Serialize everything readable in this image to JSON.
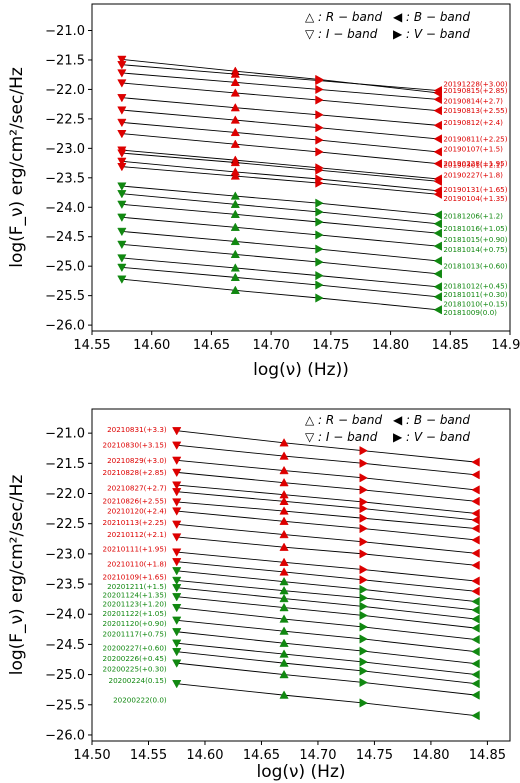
{
  "colors": {
    "red": "#dd0000",
    "green": "#118811",
    "line": "#000000"
  },
  "chart_data": [
    {
      "type": "line",
      "xlabel": "log(ν) (Hz))",
      "ylabel": "log(F_ν) erg/cm²/sec/Hz",
      "xlim": [
        14.55,
        14.9
      ],
      "ylim": [
        -26.1,
        -20.55
      ],
      "xticks": [
        "14.55",
        "14.60",
        "14.65",
        "14.70",
        "14.75",
        "14.80",
        "14.85",
        "14.90"
      ],
      "yticks": [
        "−21.0",
        "−21.5",
        "−22.0",
        "−22.5",
        "−23.0",
        "−23.5",
        "−24.0",
        "−24.5",
        "−25.0",
        "−25.5",
        "−26.0"
      ],
      "legend": {
        "position": "top-right",
        "entries": [
          "△ : R − band",
          "◀ : B − band",
          "▽ : I − band",
          "▶ : V − band"
        ]
      },
      "band_x": [
        14.575,
        14.67,
        14.74,
        14.84
      ],
      "band_markers": [
        "I",
        "R",
        "V",
        "B"
      ],
      "series": [
        {
          "name": "20191228(+3.00)",
          "color": "red",
          "values": [
            -21.49,
            -21.69,
            -21.83,
            -22.06
          ],
          "label_y": -21.91
        },
        {
          "name": "20190815(+2.85)",
          "color": "red",
          "values": [
            -21.58,
            -21.74,
            -21.85,
            -22.02
          ],
          "label_y": -22.02
        },
        {
          "name": "20190814(+2.7)",
          "color": "red",
          "values": [
            -21.72,
            -21.88,
            -22.0,
            -22.17
          ],
          "label_y": -22.2
        },
        {
          "name": "20190813(+2.55)",
          "color": "red",
          "values": [
            -21.89,
            -22.06,
            -22.18,
            -22.36
          ],
          "label_y": -22.36
        },
        {
          "name": "20190812(+2.4)",
          "color": "red",
          "values": [
            -22.14,
            -22.31,
            -22.43,
            -22.61
          ],
          "label_y": -22.56
        },
        {
          "name": "20190811(+2.25)",
          "color": "red",
          "values": [
            -22.35,
            -22.52,
            -22.65,
            -22.84
          ],
          "label_y": -22.84
        },
        {
          "name": "20190107(+1.5)",
          "color": "red",
          "values": [
            -22.56,
            -22.73,
            -22.86,
            -23.06
          ],
          "label_y": -23.01
        },
        {
          "name": "20190301(+2.1)",
          "color": "red",
          "values": [
            -22.75,
            -22.93,
            -23.06,
            -23.26
          ],
          "label_y": -23.28
        },
        {
          "name": "20190228(+1.95)",
          "color": "red",
          "values": [
            -23.03,
            -23.2,
            -23.33,
            -23.52
          ],
          "label_y": -23.26
        },
        {
          "name": "20190227(+1.8)",
          "color": "red",
          "values": [
            -23.08,
            -23.24,
            -23.37,
            -23.56
          ],
          "label_y": -23.45
        },
        {
          "name": "20190131(+1.65)",
          "color": "red",
          "values": [
            -23.22,
            -23.4,
            -23.52,
            -23.72
          ],
          "label_y": -23.7
        },
        {
          "name": "20190104(+1.35)",
          "color": "red",
          "values": [
            -23.31,
            -23.47,
            -23.59,
            -23.78
          ],
          "label_y": -23.85
        },
        {
          "name": "20181206(+1.2)",
          "color": "green",
          "values": [
            -23.64,
            -23.81,
            -23.93,
            -24.13
          ],
          "label_y": -24.15
        },
        {
          "name": "20181016(+1.05)",
          "color": "green",
          "values": [
            -23.77,
            -23.95,
            -24.08,
            -24.28
          ],
          "label_y": -24.36
        },
        {
          "name": "20181015(+0.90)",
          "color": "green",
          "values": [
            -23.95,
            -24.12,
            -24.25,
            -24.44
          ],
          "label_y": -24.55
        },
        {
          "name": "20181014(+0.75)",
          "color": "green",
          "values": [
            -24.17,
            -24.34,
            -24.47,
            -24.66
          ],
          "label_y": -24.72
        },
        {
          "name": "20181013(+0.60)",
          "color": "green",
          "values": [
            -24.41,
            -24.58,
            -24.71,
            -24.91
          ],
          "label_y": -25.0
        },
        {
          "name": "20181012(+0.45)",
          "color": "green",
          "values": [
            -24.63,
            -24.8,
            -24.93,
            -25.13
          ],
          "label_y": -25.34
        },
        {
          "name": "20181011(+0.30)",
          "color": "green",
          "values": [
            -24.86,
            -25.03,
            -25.16,
            -25.35
          ],
          "label_y": -25.48
        },
        {
          "name": "20181010(+0.15)",
          "color": "green",
          "values": [
            -25.02,
            -25.19,
            -25.32,
            -25.52
          ],
          "label_y": -25.64
        },
        {
          "name": "20181009(0.0)",
          "color": "green",
          "values": [
            -25.22,
            -25.41,
            -25.54,
            -25.74
          ],
          "label_y": -25.79
        }
      ]
    },
    {
      "type": "line",
      "xlabel": "log(ν) (Hz)",
      "ylabel": "log(F_ν) erg/cm²/sec/Hz",
      "xlim": [
        14.5,
        14.87
      ],
      "ylim": [
        -26.1,
        -20.6
      ],
      "xticks": [
        "14.50",
        "14.55",
        "14.60",
        "14.65",
        "14.70",
        "14.75",
        "14.80",
        "14.85"
      ],
      "yticks": [
        "−21.0",
        "−21.5",
        "−22.0",
        "−22.5",
        "−23.0",
        "−23.5",
        "−24.0",
        "−24.5",
        "−25.0",
        "−25.5",
        "−26.0"
      ],
      "legend": {
        "position": "top-right",
        "entries": [
          "△ : R − band",
          "◀ : B − band",
          "▽ : I − band",
          "▶ : V − band"
        ]
      },
      "band_x": [
        14.575,
        14.67,
        14.74,
        14.84
      ],
      "band_markers": [
        "I",
        "R",
        "V",
        "B"
      ],
      "series": [
        {
          "name": "20210831(+3.3)",
          "color": "red",
          "values": [
            -20.96,
            -21.16,
            -21.29,
            -21.48
          ],
          "label_y": -20.94
        },
        {
          "name": "20210830(+3.15)",
          "color": "red",
          "values": [
            -21.2,
            -21.38,
            -21.5,
            -21.69
          ],
          "label_y": -21.2
        },
        {
          "name": "20210829(+3.0)",
          "color": "red",
          "values": [
            -21.45,
            -21.62,
            -21.74,
            -21.94
          ],
          "label_y": -21.45
        },
        {
          "name": "20210828(+2.85)",
          "color": "red",
          "values": [
            -21.65,
            -21.82,
            -21.94,
            -22.13
          ],
          "label_y": -21.65
        },
        {
          "name": "20210827(+2.7)",
          "color": "red",
          "values": [
            -21.86,
            -22.02,
            -22.14,
            -22.33
          ],
          "label_y": -21.91
        },
        {
          "name": "20210826(+2.55)",
          "color": "red",
          "values": [
            -21.97,
            -22.13,
            -22.25,
            -22.44
          ],
          "label_y": -22.12
        },
        {
          "name": "20210120(+2.4)",
          "color": "red",
          "values": [
            -22.14,
            -22.29,
            -22.41,
            -22.58
          ],
          "label_y": -22.29
        },
        {
          "name": "20210113(+2.25)",
          "color": "red",
          "values": [
            -22.29,
            -22.46,
            -22.58,
            -22.77
          ],
          "label_y": -22.48
        },
        {
          "name": "20210112(+2.1)",
          "color": "red",
          "values": [
            -22.51,
            -22.68,
            -22.8,
            -22.99
          ],
          "label_y": -22.68
        },
        {
          "name": "20210111(+1.95)",
          "color": "red",
          "values": [
            -22.72,
            -22.89,
            -23.0,
            -23.19
          ],
          "label_y": -22.92
        },
        {
          "name": "20210110(+1.8)",
          "color": "red",
          "values": [
            -22.97,
            -23.14,
            -23.26,
            -23.45
          ],
          "label_y": -23.17
        },
        {
          "name": "20210109(+1.65)",
          "color": "red",
          "values": [
            -23.13,
            -23.3,
            -23.43,
            -23.62
          ],
          "label_y": -23.38
        },
        {
          "name": "20201211(+1.5)",
          "color": "green",
          "values": [
            -23.28,
            -23.46,
            -23.59,
            -23.79
          ],
          "label_y": -23.54
        },
        {
          "name": "20201124(+1.35)",
          "color": "green",
          "values": [
            -23.44,
            -23.61,
            -23.73,
            -23.93
          ],
          "label_y": -23.68
        },
        {
          "name": "20201123(+1.20)",
          "color": "green",
          "values": [
            -23.56,
            -23.74,
            -23.87,
            -24.08
          ],
          "label_y": -23.83
        },
        {
          "name": "20201122(+1.05)",
          "color": "green",
          "values": [
            -23.71,
            -23.89,
            -24.02,
            -24.23
          ],
          "label_y": -23.99
        },
        {
          "name": "20201120(+0.90)",
          "color": "green",
          "values": [
            -23.89,
            -24.08,
            -24.21,
            -24.42
          ],
          "label_y": -24.15
        },
        {
          "name": "20201117(+0.75)",
          "color": "green",
          "values": [
            -24.1,
            -24.28,
            -24.41,
            -24.62
          ],
          "label_y": -24.33
        },
        {
          "name": "20200227(+0.60)",
          "color": "green",
          "values": [
            -24.29,
            -24.48,
            -24.61,
            -24.82
          ],
          "label_y": -24.56
        },
        {
          "name": "20200226(+0.45)",
          "color": "green",
          "values": [
            -24.48,
            -24.66,
            -24.79,
            -25.0
          ],
          "label_y": -24.73
        },
        {
          "name": "20200225(+0.30)",
          "color": "green",
          "values": [
            -24.62,
            -24.81,
            -24.94,
            -25.15
          ],
          "label_y": -24.91
        },
        {
          "name": "20200224(0.15)",
          "color": "green",
          "values": [
            -24.81,
            -25.0,
            -25.13,
            -25.34
          ],
          "label_y": -25.1
        },
        {
          "name": "20200222(0.0)",
          "color": "green",
          "values": [
            -25.15,
            -25.34,
            -25.47,
            -25.68
          ],
          "label_y": -25.42
        }
      ]
    }
  ]
}
